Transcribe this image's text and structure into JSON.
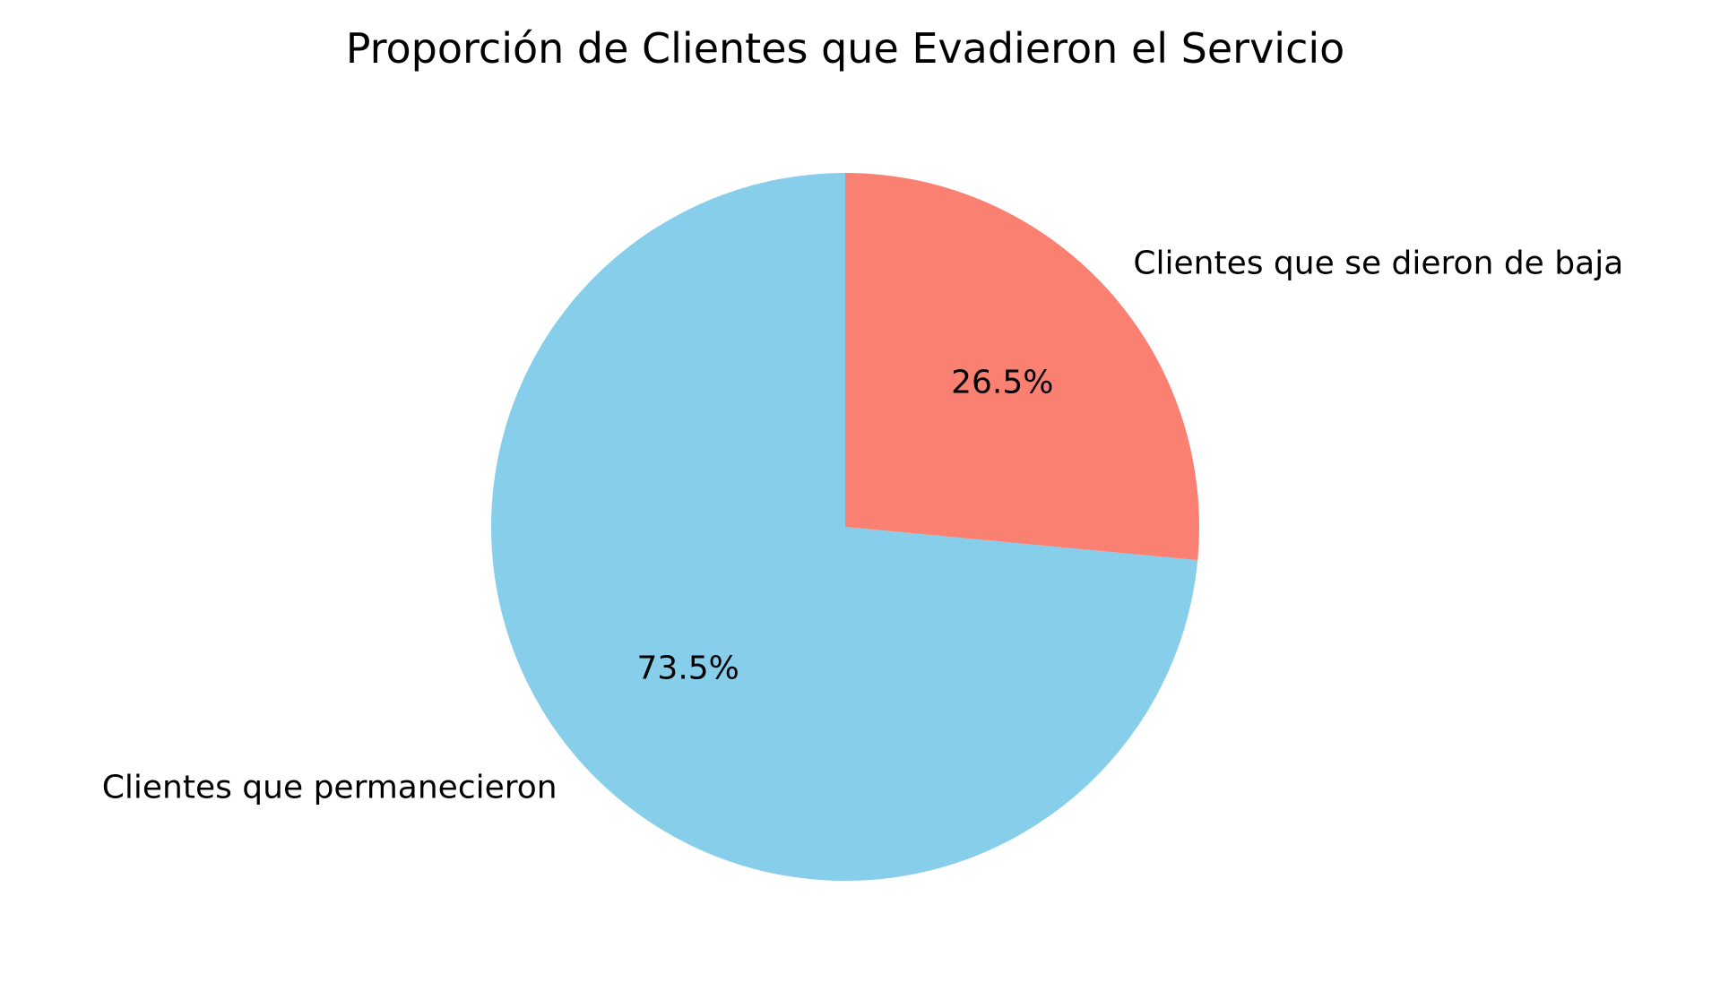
{
  "chart_data": {
    "type": "pie",
    "title": "Proporción de Clientes que Evadieron el Servicio",
    "slices": [
      {
        "label": "Clientes que permanecieron",
        "value": 73.5,
        "pct_label": "73.5%",
        "color": "#87CEEB"
      },
      {
        "label": "Clientes que se dieron de baja",
        "value": 26.5,
        "pct_label": "26.5%",
        "color": "#FA8072"
      }
    ],
    "start_angle_deg": 90,
    "direction": "counterclockwise",
    "legend": "none"
  }
}
